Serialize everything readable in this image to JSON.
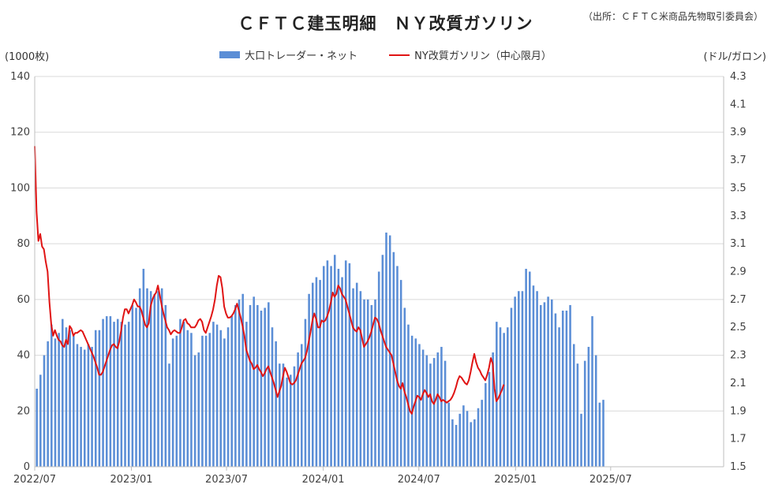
{
  "header": {
    "title": "ＣＦＴＣ建玉明細　ＮＹ改質ガソリン",
    "source": "（出所：ＣＦＴＣ米商品先物取引委員会）"
  },
  "legend": {
    "bar_label": "大口トレーダー・ネット",
    "line_label": "NY改質ガソリン（中心限月）"
  },
  "axes": {
    "left_unit": "(1000枚)",
    "right_unit": "(ドル/ガロン)"
  },
  "colors": {
    "bar": "#5b8ed6",
    "line": "#e01414",
    "grid": "#d9d9d9"
  },
  "chart_data": {
    "type": "bar",
    "x_type": "date",
    "x_range": [
      "2022-07-01",
      "2026-02-01"
    ],
    "x_ticks": [
      "2022/07",
      "2023/01",
      "2023/07",
      "2024/01",
      "2024/07",
      "2025/01",
      "2025/07"
    ],
    "grid": true,
    "legend_position": "top-center",
    "y_left": {
      "label": "(1000枚)",
      "range": [
        0,
        140
      ],
      "ticks": [
        0,
        20,
        40,
        60,
        80,
        100,
        120,
        140
      ]
    },
    "y_right": {
      "label": "(ドル/ガロン)",
      "range": [
        1.5,
        4.3
      ],
      "ticks": [
        "1.5",
        "1.7",
        "1.9",
        "2.1",
        "2.3",
        "2.5",
        "2.7",
        "2.9",
        "3.1",
        "3.3",
        "3.5",
        "3.7",
        "3.9",
        "4.1",
        "4.3"
      ]
    },
    "series": [
      {
        "name": "大口トレーダー・ネット",
        "type": "bar",
        "axis": "left",
        "start": "2022-07-05",
        "interval_days": 7,
        "values": [
          28,
          33,
          40,
          45,
          51,
          46,
          48,
          53,
          50,
          49,
          47,
          44,
          43,
          42,
          44,
          43,
          49,
          49,
          53,
          54,
          54,
          52,
          53,
          52,
          51,
          52,
          58,
          57,
          64,
          71,
          64,
          63,
          62,
          63,
          64,
          58,
          37,
          46,
          47,
          53,
          52,
          49,
          48,
          40,
          41,
          47,
          47,
          48,
          52,
          51,
          49,
          46,
          50,
          54,
          58,
          60,
          62,
          52,
          58,
          61,
          58,
          56,
          57,
          59,
          50,
          45,
          37,
          37,
          32,
          33,
          36,
          41,
          44,
          53,
          62,
          66,
          68,
          67,
          72,
          74,
          72,
          76,
          71,
          68,
          74,
          73,
          64,
          66,
          63,
          60,
          60,
          58,
          60,
          70,
          76,
          84,
          83,
          77,
          72,
          67,
          57,
          51,
          47,
          46,
          44,
          42,
          40,
          37,
          39,
          41,
          43,
          38,
          23,
          17,
          15,
          19,
          22,
          20,
          16,
          17,
          21,
          24,
          30,
          34,
          41,
          52,
          50,
          48,
          50,
          57,
          61,
          63,
          63,
          71,
          70,
          65,
          63,
          58,
          59,
          61,
          60,
          55,
          50,
          56,
          56,
          58,
          44,
          37,
          19,
          38,
          43,
          54,
          40,
          23,
          24
        ]
      },
      {
        "name": "NY改質ガソリン（中心限月）",
        "type": "line",
        "axis": "right",
        "start": "2022-07-01",
        "interval_days": 3.5,
        "values": [
          3.8,
          3.33,
          3.12,
          3.17,
          3.08,
          3.06,
          2.97,
          2.9,
          2.68,
          2.52,
          2.44,
          2.48,
          2.44,
          2.41,
          2.4,
          2.37,
          2.36,
          2.41,
          2.38,
          2.51,
          2.49,
          2.44,
          2.46,
          2.46,
          2.47,
          2.48,
          2.47,
          2.44,
          2.41,
          2.38,
          2.35,
          2.32,
          2.29,
          2.25,
          2.21,
          2.16,
          2.16,
          2.18,
          2.22,
          2.26,
          2.3,
          2.34,
          2.37,
          2.38,
          2.36,
          2.35,
          2.4,
          2.48,
          2.57,
          2.63,
          2.63,
          2.6,
          2.63,
          2.66,
          2.7,
          2.68,
          2.65,
          2.65,
          2.62,
          2.57,
          2.52,
          2.5,
          2.53,
          2.65,
          2.7,
          2.73,
          2.75,
          2.8,
          2.73,
          2.66,
          2.6,
          2.55,
          2.5,
          2.48,
          2.45,
          2.47,
          2.48,
          2.47,
          2.46,
          2.46,
          2.5,
          2.55,
          2.56,
          2.53,
          2.52,
          2.5,
          2.5,
          2.5,
          2.52,
          2.55,
          2.56,
          2.54,
          2.48,
          2.46,
          2.5,
          2.54,
          2.58,
          2.63,
          2.7,
          2.8,
          2.87,
          2.86,
          2.78,
          2.65,
          2.6,
          2.57,
          2.57,
          2.58,
          2.6,
          2.63,
          2.67,
          2.62,
          2.57,
          2.51,
          2.44,
          2.34,
          2.3,
          2.26,
          2.24,
          2.2,
          2.21,
          2.23,
          2.2,
          2.18,
          2.15,
          2.17,
          2.2,
          2.22,
          2.18,
          2.14,
          2.1,
          2.05,
          2.0,
          2.04,
          2.08,
          2.15,
          2.21,
          2.18,
          2.14,
          2.1,
          2.09,
          2.1,
          2.12,
          2.16,
          2.2,
          2.24,
          2.26,
          2.28,
          2.33,
          2.4,
          2.47,
          2.55,
          2.6,
          2.56,
          2.5,
          2.5,
          2.55,
          2.54,
          2.55,
          2.58,
          2.62,
          2.68,
          2.75,
          2.72,
          2.74,
          2.8,
          2.78,
          2.74,
          2.72,
          2.7,
          2.65,
          2.6,
          2.55,
          2.5,
          2.48,
          2.47,
          2.5,
          2.48,
          2.42,
          2.36,
          2.38,
          2.4,
          2.43,
          2.47,
          2.52,
          2.57,
          2.56,
          2.53,
          2.48,
          2.44,
          2.4,
          2.36,
          2.34,
          2.32,
          2.3,
          2.24,
          2.18,
          2.12,
          2.08,
          2.06,
          2.1,
          2.04,
          2.0,
          1.95,
          1.9,
          1.88,
          1.93,
          1.97,
          2.01,
          2.0,
          1.98,
          2.02,
          2.05,
          2.03,
          2.0,
          2.02,
          1.97,
          1.95,
          1.98,
          2.02,
          2.0,
          1.97,
          1.98,
          1.97,
          1.96,
          1.97,
          1.98,
          2.0,
          2.03,
          2.07,
          2.12,
          2.15,
          2.14,
          2.12,
          2.1,
          2.09,
          2.12,
          2.18,
          2.25,
          2.31,
          2.25,
          2.21,
          2.19,
          2.16,
          2.14,
          2.12,
          2.16,
          2.21,
          2.28,
          2.24,
          2.06,
          1.97,
          1.99,
          2.02,
          2.05,
          2.09
        ]
      }
    ]
  }
}
